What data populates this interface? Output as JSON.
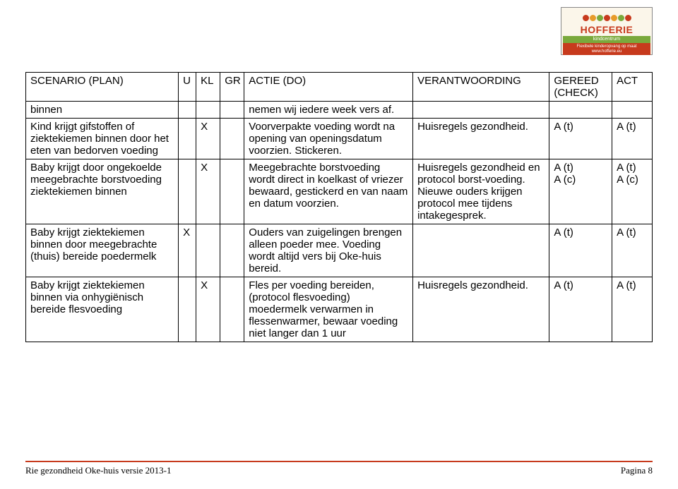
{
  "logo": {
    "brand": "HOFFERIE",
    "sub": "kindcentrum",
    "tag1": "Flexibele kinderopvang op maat",
    "tag2": "www.hofferie.eu",
    "caterpillar_colors": [
      "#c73a1d",
      "#e79b2a",
      "#7aa93c",
      "#c73a1d",
      "#e79b2a",
      "#7aa93c",
      "#c73a1d"
    ]
  },
  "columns": [
    "SCENARIO (PLAN)",
    "U",
    "KL",
    "GR",
    "ACTIE (DO)",
    "VERANTWOORDING",
    "GEREED (CHECK)",
    "ACT"
  ],
  "rows": [
    {
      "scenario": "binnen",
      "u": "",
      "kl": "",
      "gr": "",
      "actie": "nemen wij iedere week vers af.",
      "verant": "",
      "gereed": "",
      "act": ""
    },
    {
      "scenario": "Kind krijgt gifstoffen of ziektekiemen binnen door het eten van bedorven voeding",
      "u": "",
      "kl": "X",
      "gr": "",
      "actie": "Voorverpakte voeding wordt na opening van openingsdatum voorzien. Stickeren.",
      "verant": "Huisregels gezondheid.",
      "gereed": "A (t)",
      "act": "A (t)"
    },
    {
      "scenario": "Baby krijgt door ongekoelde meegebrachte borstvoeding ziektekiemen binnen",
      "u": "",
      "kl": "X",
      "gr": "",
      "actie": "Meegebrachte borstvoeding wordt direct in koelkast of vriezer bewaard, gestickerd en van naam en datum voorzien.",
      "verant": "Huisregels gezondheid en protocol borst-voeding.\nNieuwe ouders krijgen protocol mee tijdens intakegesprek.",
      "gereed": "A (t)\nA (c)",
      "act": "A (t)\nA (c)"
    },
    {
      "scenario": "Baby krijgt ziektekiemen binnen door meegebrachte (thuis) bereide poedermelk",
      "u": "X",
      "kl": "",
      "gr": "",
      "actie": "Ouders van zuigelingen brengen alleen poeder mee. Voeding wordt altijd vers bij Oke-huis bereid.",
      "verant": "",
      "gereed": "A (t)",
      "act": "A (t)"
    },
    {
      "scenario": "Baby krijgt ziektekiemen binnen via onhygiënisch bereide flesvoeding",
      "u": "",
      "kl": "X",
      "gr": "",
      "actie": "Fles per voeding bereiden, (protocol flesvoeding) moedermelk verwarmen in flessenwarmer, bewaar voeding niet langer dan 1 uur",
      "verant": "Huisregels gezondheid.",
      "gereed": "A (t)",
      "act": "A (t)"
    }
  ],
  "footer": {
    "left": "Rie gezondheid Oke-huis versie 2013-1",
    "right": "Pagina 8",
    "line_color": "#c73a1d"
  },
  "style": {
    "font_family": "Comic Sans MS",
    "footer_font_family": "Georgia",
    "border_color": "#000000",
    "background": "#ffffff",
    "font_size_table": 15,
    "font_size_footer": 13
  }
}
